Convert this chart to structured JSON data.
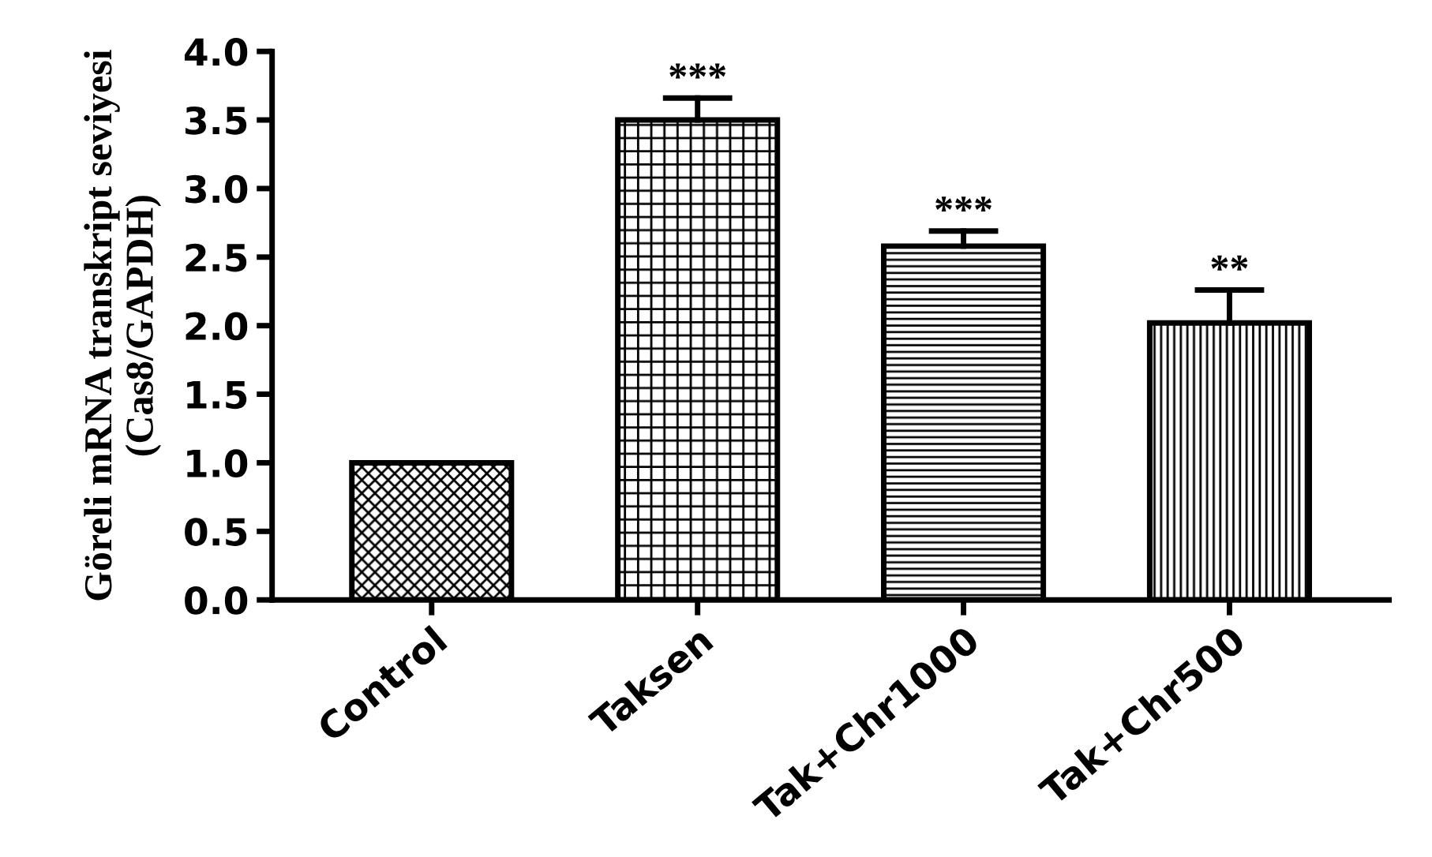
{
  "chart_data": {
    "type": "bar",
    "ylabel": "Göreli mRNA transkript seviyesi\n(Cas8/GAPDH)",
    "categories": [
      "Control",
      "Taksen",
      "Tak+Chr1000",
      "Tak+Chr500"
    ],
    "values": [
      1.0,
      3.5,
      2.58,
      2.02
    ],
    "errors": [
      null,
      [
        3.5,
        3.66
      ],
      [
        2.58,
        2.69
      ],
      [
        2.02,
        2.26
      ]
    ],
    "colors": [
      "#000000",
      "#000000",
      "#000000",
      "#000000"
    ],
    "ylim": [
      0,
      4.0
    ],
    "yticks": [
      {
        "value": 0,
        "label": "0.0"
      },
      {
        "value": 0.5,
        "label": "0.5"
      },
      {
        "value": 1.0,
        "label": "1.0"
      },
      {
        "value": 1.5,
        "label": "1.5"
      },
      {
        "value": 2.0,
        "label": "2.0"
      },
      {
        "value": 2.5,
        "label": "2.5"
      },
      {
        "value": 3.0,
        "label": "3.0"
      },
      {
        "value": 3.5,
        "label": "3.5"
      },
      {
        "value": 4.0,
        "label": "4.0"
      }
    ],
    "annotations": [
      {
        "text": "***",
        "x": "Taksen",
        "y": 3.66
      },
      {
        "text": "***",
        "x": "Tak+Chr1000",
        "y": 2.69
      },
      {
        "text": "**",
        "x": "Tak+Chr500",
        "y": 2.26
      }
    ],
    "grid": false,
    "legend": false
  }
}
